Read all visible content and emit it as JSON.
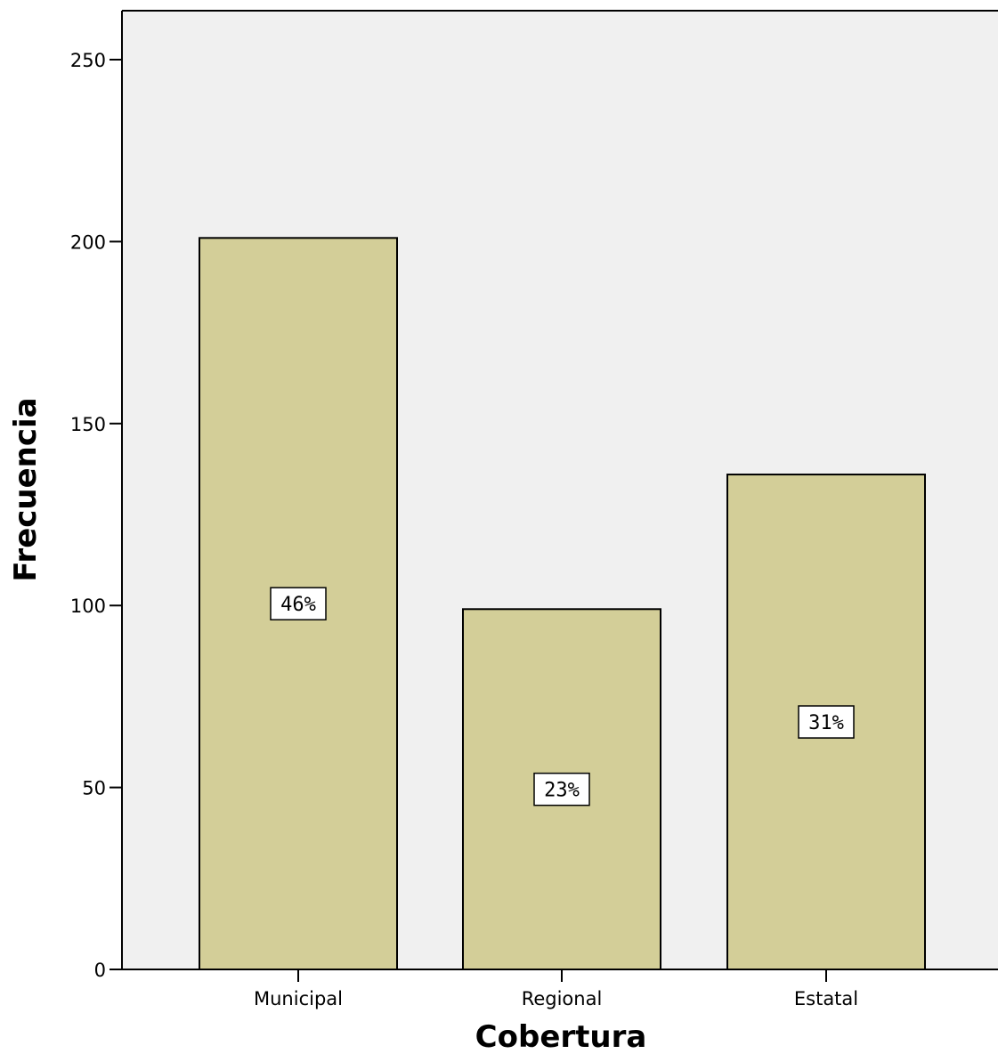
{
  "chart_data": {
    "type": "bar",
    "categories": [
      "Municipal",
      "Regional",
      "Estatal"
    ],
    "values": [
      201,
      99,
      136
    ],
    "data_labels": [
      "46%",
      "23%",
      "31%"
    ],
    "xlabel": "Cobertura",
    "ylabel": "Frecuencia",
    "ylim": [
      0,
      260
    ],
    "yticks": [
      0,
      50,
      100,
      150,
      200,
      250
    ],
    "grid": false,
    "legend": "none",
    "colors": {
      "plot_background": "#f0f0f0",
      "bar_fill": "#d3ce98",
      "bar_stroke": "#000000"
    }
  }
}
